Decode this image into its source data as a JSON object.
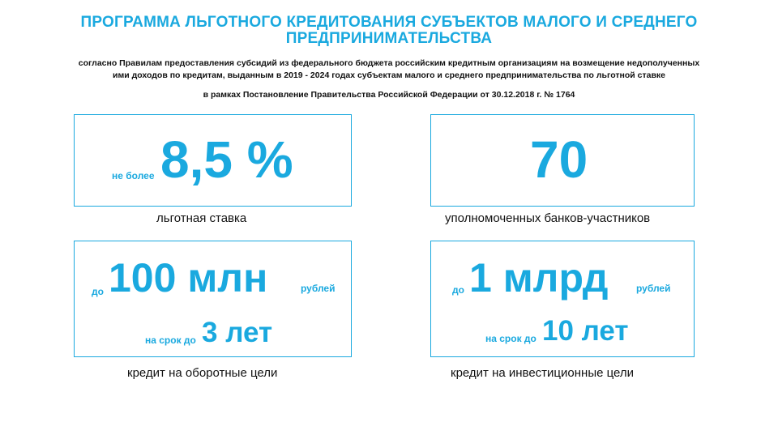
{
  "title_lines": [
    "ПРОГРАММА ЛЬГОТНОГО КРЕДИТОВАНИЯ СУБЪЕКТОВ МАЛОГО И СРЕДНЕГО",
    "ПРЕДПРИНИМАТЕЛЬСТВА"
  ],
  "subtitle_lines": [
    "согласно Правилам предоставления субсидий из федерального бюджета российским кредитным организациям на возмещение недополученных",
    "ими доходов по кредитам, выданным в 2019 - 2024 годах субъектам малого и среднего предпринимательства по льготной ставке"
  ],
  "decree": "в рамках Постановление Правительства Российской Федерации от 30.12.2018 г. № 1764",
  "accent_color": "#1aa9df",
  "cards": {
    "rate": {
      "prefix": "не более",
      "value": "8,5 %",
      "caption": "льготная ставка"
    },
    "banks": {
      "value": "70",
      "caption": "уполномоченных банков-участников"
    },
    "working": {
      "prefix": "до",
      "amount": "100 млн",
      "unit": "рублей",
      "term_prefix": "на срок до",
      "term": "3 лет",
      "caption": "кредит на оборотные цели"
    },
    "investment": {
      "prefix": "до",
      "amount": "1 млрд",
      "unit": "рублей",
      "term_prefix": "на срок до",
      "term": "10 лет",
      "caption": "кредит на инвестиционные цели"
    }
  }
}
